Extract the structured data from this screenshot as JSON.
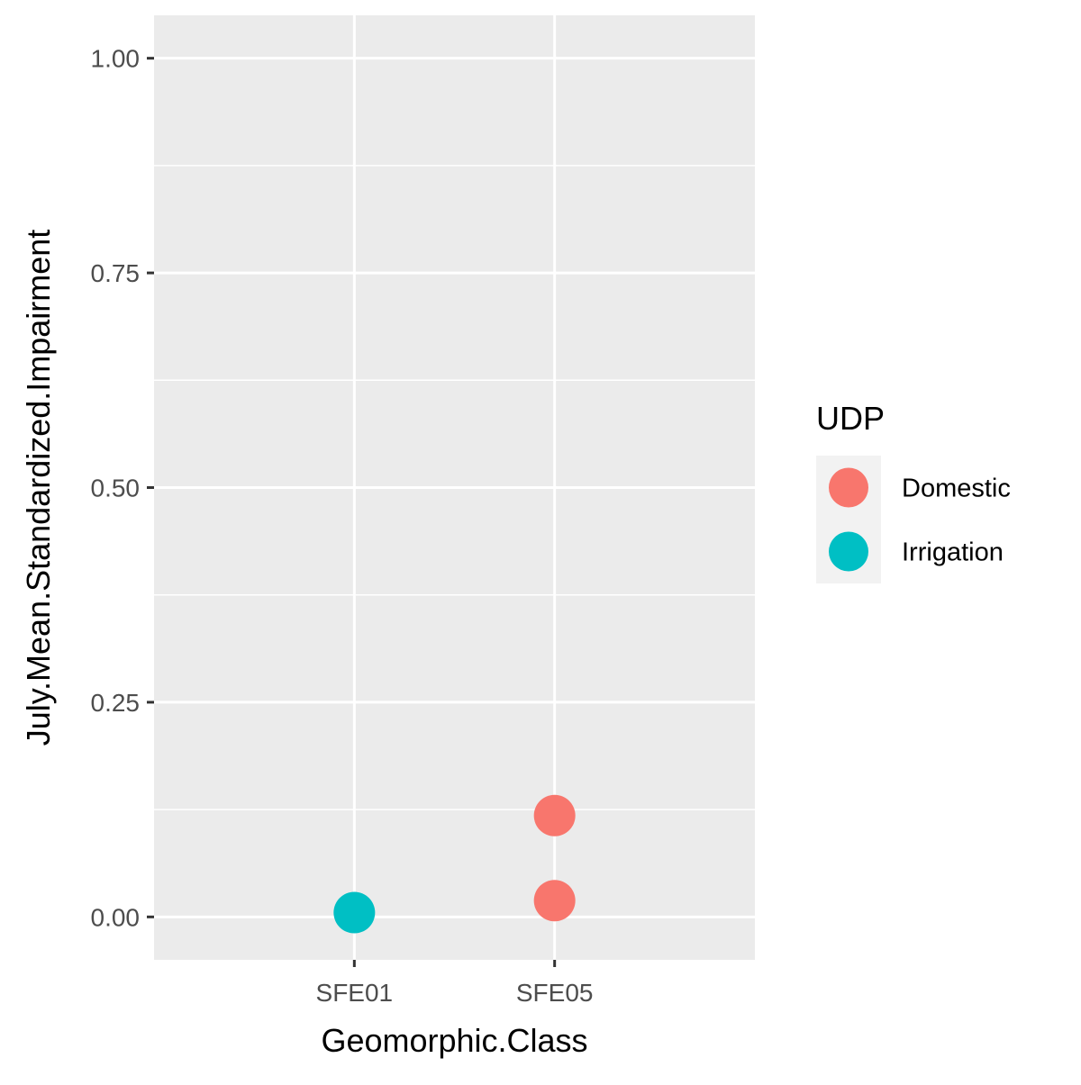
{
  "chart_data": {
    "type": "scatter",
    "xlabel": "Geomorphic.Class",
    "ylabel": "July.Mean.Standardized.Impairment",
    "categories": [
      "SFE01",
      "SFE05"
    ],
    "ylim": [
      -0.05,
      1.05
    ],
    "yticks": [
      0.0,
      0.25,
      0.5,
      0.75,
      1.0
    ],
    "ytick_labels": [
      "0.00",
      "0.25",
      "0.50",
      "0.75",
      "1.00"
    ],
    "grid": true,
    "legend": {
      "title": "UDP",
      "placement": "right",
      "entries": [
        {
          "label": "Domestic",
          "color": "#F8766D"
        },
        {
          "label": "Irrigation",
          "color": "#00BFC4"
        }
      ]
    },
    "series": [
      {
        "name": "Domestic",
        "color": "#F8766D",
        "points": [
          {
            "x": "SFE05",
            "y": 0.118
          },
          {
            "x": "SFE05",
            "y": 0.019
          }
        ]
      },
      {
        "name": "Irrigation",
        "color": "#00BFC4",
        "points": [
          {
            "x": "SFE01",
            "y": 0.005
          }
        ]
      }
    ],
    "colors": {
      "panel": "#EBEBEB",
      "grid": "#FFFFFF",
      "tick_text": "#4D4D4D"
    }
  }
}
